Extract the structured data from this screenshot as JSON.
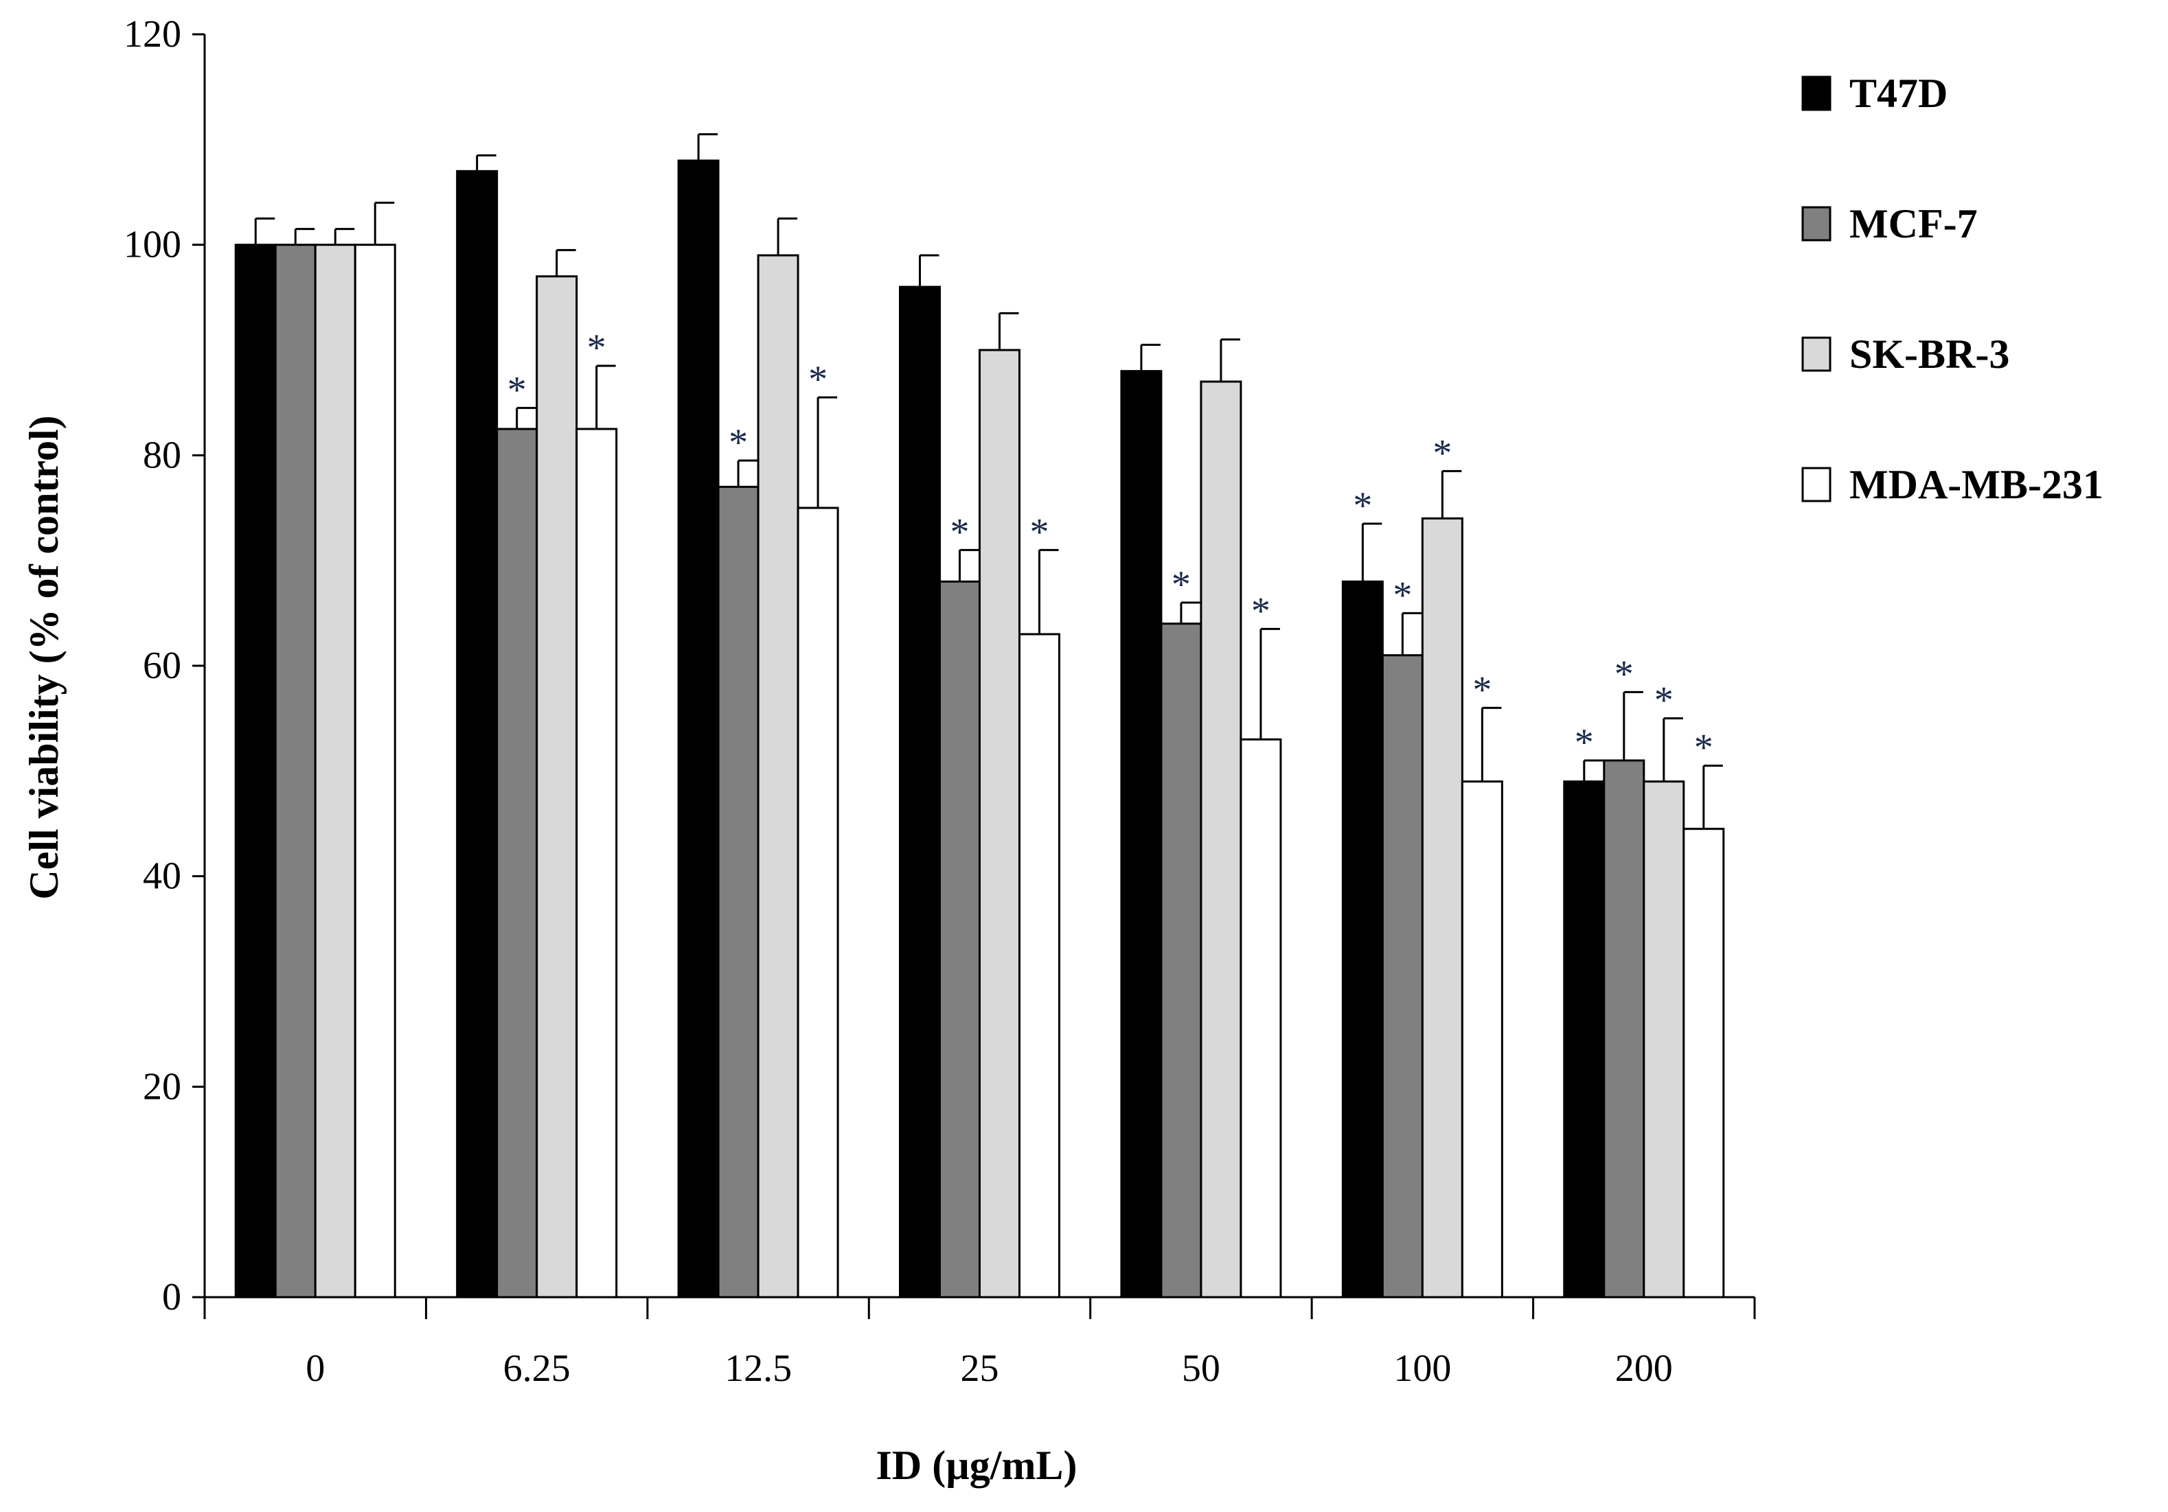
{
  "chart_data": {
    "type": "bar",
    "title": "",
    "xlabel": "ID (µg/mL)",
    "ylabel": "Cell viability  (% of control)",
    "ylim": [
      0,
      120
    ],
    "yticks": [
      "0",
      "20",
      "40",
      "60",
      "80",
      "100",
      "120"
    ],
    "categories": [
      "0",
      "6.25",
      "12.5",
      "25",
      "50",
      "100",
      "200"
    ],
    "legend_position": "right",
    "significance_marker": "*",
    "series": [
      {
        "name": "T47D",
        "color": "#000000",
        "values": [
          100,
          107,
          108,
          96,
          88,
          68,
          49
        ],
        "errors": [
          2.5,
          1.5,
          2.5,
          3,
          2.5,
          5.5,
          2
        ],
        "significant": [
          false,
          false,
          false,
          false,
          false,
          true,
          true
        ]
      },
      {
        "name": "MCF-7",
        "color": "#808080",
        "values": [
          100,
          82.5,
          77,
          68,
          64,
          61,
          51
        ],
        "errors": [
          1.5,
          2,
          2.5,
          3,
          2,
          4,
          6.5
        ],
        "significant": [
          false,
          true,
          true,
          true,
          true,
          true,
          true
        ]
      },
      {
        "name": "SK-BR-3",
        "color": "#d9d9d9",
        "values": [
          100,
          97,
          99,
          90,
          87,
          74,
          49
        ],
        "errors": [
          1.5,
          2.5,
          3.5,
          3.5,
          4,
          4.5,
          6
        ],
        "significant": [
          false,
          false,
          false,
          false,
          false,
          true,
          true
        ]
      },
      {
        "name": "MDA-MB-231",
        "color": "#ffffff",
        "values": [
          100,
          82.5,
          75,
          63,
          53,
          49,
          44.5
        ],
        "errors": [
          4,
          6,
          10.5,
          8,
          10.5,
          7,
          6
        ],
        "significant": [
          false,
          true,
          true,
          true,
          true,
          true,
          true
        ]
      }
    ]
  }
}
